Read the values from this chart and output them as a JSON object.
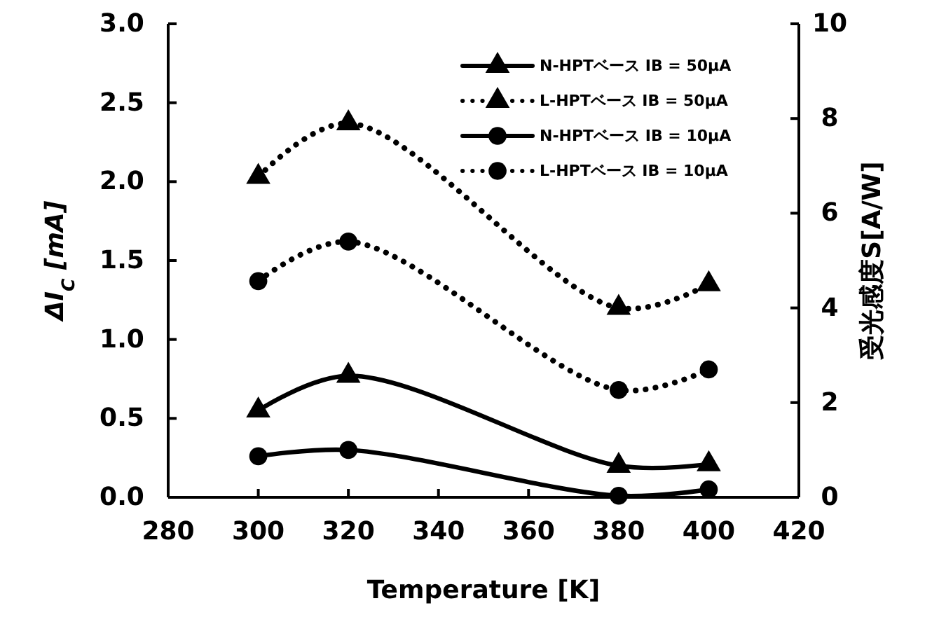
{
  "chart_data": {
    "type": "line",
    "xlabel": "Temperature [K]",
    "ylabel": "ΔI$_{C}$ [mA]",
    "y2label": "受光感度S[A/W]",
    "x": [
      300,
      320,
      380,
      400
    ],
    "series": [
      {
        "name": "N-HPTベース IB = 50μA",
        "color": "#000000",
        "values": [
          0.55,
          0.77,
          0.2,
          0.21
        ],
        "marker": "triangle",
        "line_style": "solid"
      },
      {
        "name": "L-HPTベース IB = 50μA",
        "color": "#000000",
        "values": [
          2.03,
          2.37,
          1.2,
          1.35
        ],
        "marker": "triangle",
        "line_style": "dotted"
      },
      {
        "name": "N-HPTベース IB = 10μA",
        "color": "#000000",
        "values": [
          0.26,
          0.3,
          0.01,
          0.05
        ],
        "marker": "circle",
        "line_style": "solid"
      },
      {
        "name": "L-HPTベース IB = 10μA",
        "color": "#000000",
        "values": [
          1.37,
          1.62,
          0.68,
          0.81
        ],
        "marker": "circle",
        "line_style": "dotted"
      }
    ],
    "xlim": [
      280,
      420
    ],
    "xticks": [
      280,
      300,
      320,
      340,
      360,
      380,
      400,
      420
    ],
    "ylim": [
      0,
      3
    ],
    "yticks": [
      {
        "value": 0,
        "label": "0.0"
      },
      {
        "value": 0.5,
        "label": "0.5"
      },
      {
        "value": 1,
        "label": "1.0"
      },
      {
        "value": 1.5,
        "label": "1.5"
      },
      {
        "value": 2,
        "label": "2.0"
      },
      {
        "value": 2.5,
        "label": "2.5"
      },
      {
        "value": 3,
        "label": "3.0"
      }
    ],
    "y2lim": [
      0,
      10
    ],
    "y2ticks": [
      0,
      2,
      4,
      6,
      8,
      10
    ],
    "legend": "top right",
    "grid": false
  }
}
